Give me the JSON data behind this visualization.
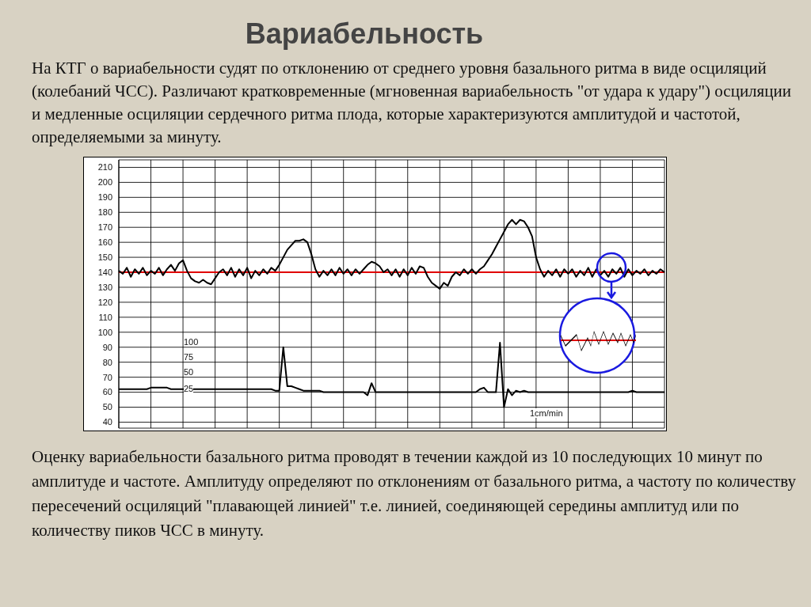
{
  "chart_data": {
    "type": "line",
    "title": "Вариабельность",
    "subtitle": "На КТГ о вариабельности судят по отклонению от среднего уровня базального ритма в виде осциляций (колебаний ЧСС). Различают кратковременные (мгновенная вариабельность \"от удара к удару\") осциляции и медленные осциляции сердечного ритма плода, которые характеризуются амплитудой и частотой, определяемыми за минуту.",
    "categories": [
      null,
      null,
      null,
      null,
      null,
      null,
      null,
      null,
      null,
      null,
      null,
      null,
      null,
      null,
      null,
      null,
      null,
      null,
      null,
      null,
      null,
      null,
      null,
      null,
      null,
      null,
      null,
      null,
      null,
      null,
      null,
      null,
      null,
      null,
      null,
      null,
      null,
      null,
      null,
      null,
      null,
      null,
      null,
      null,
      null,
      null,
      null,
      null,
      null,
      null,
      null,
      null,
      null,
      null,
      null,
      null,
      null,
      null,
      null,
      null,
      null,
      null,
      null,
      null,
      null,
      null,
      null,
      null,
      null,
      null,
      null,
      null,
      null,
      null,
      null,
      null,
      null,
      null,
      null,
      null,
      null,
      null,
      null,
      null,
      null,
      null,
      null,
      null,
      null,
      null,
      null,
      null,
      null,
      null,
      null,
      null,
      null,
      null,
      null,
      null,
      null,
      null,
      null,
      null,
      null,
      null,
      null,
      null,
      null,
      null,
      null,
      null,
      null,
      null,
      null,
      null,
      null,
      null,
      null,
      null,
      null,
      null,
      null,
      null,
      null,
      null,
      null,
      null,
      null,
      null,
      null,
      null,
      null,
      null,
      null,
      null,
      null
    ],
    "series": [
      {
        "color": "#000000",
        "values": [
          141,
          139,
          143,
          137,
          142,
          139,
          143,
          138,
          141,
          139,
          143,
          138,
          142,
          145,
          141,
          146,
          148,
          141,
          136,
          134,
          133,
          135,
          133,
          132,
          136,
          140,
          142,
          138,
          143,
          137,
          142,
          138,
          143,
          136,
          141,
          138,
          142,
          139,
          143,
          141,
          145,
          150,
          155,
          158,
          161,
          161,
          162,
          160,
          152,
          142,
          137,
          141,
          138,
          142,
          138,
          143,
          139,
          142,
          138,
          142,
          139,
          142,
          145,
          147,
          146,
          144,
          140,
          142,
          138,
          142,
          137,
          142,
          138,
          143,
          139,
          144,
          143,
          137,
          133,
          131,
          129,
          133,
          131,
          137,
          140,
          138,
          142,
          139,
          142,
          139,
          142,
          144,
          148,
          152,
          157,
          162,
          167,
          172,
          175,
          172,
          175,
          174,
          170,
          164,
          150,
          142,
          137,
          141,
          138,
          142,
          137,
          142,
          139,
          142,
          137,
          141,
          138,
          143,
          137,
          142,
          138,
          141,
          137,
          142,
          139,
          143,
          137,
          142,
          138,
          141,
          139,
          142,
          138,
          141,
          139,
          142,
          140
        ]
      },
      {
        "color": "#000000",
        "values": [
          62,
          62,
          62,
          62,
          62,
          62,
          62,
          62,
          63,
          63,
          63,
          63,
          63,
          62,
          62,
          62,
          62,
          62,
          62,
          62,
          62,
          62,
          62,
          62,
          62,
          62,
          62,
          62,
          62,
          62,
          62,
          62,
          62,
          62,
          62,
          62,
          62,
          62,
          62,
          61,
          61,
          90,
          64,
          64,
          63,
          62,
          61,
          61,
          61,
          61,
          61,
          60,
          60,
          60,
          60,
          60,
          60,
          60,
          60,
          60,
          60,
          60,
          58,
          66,
          60,
          60,
          60,
          60,
          60,
          60,
          60,
          60,
          60,
          60,
          60,
          60,
          60,
          60,
          60,
          60,
          60,
          60,
          60,
          60,
          60,
          60,
          60,
          60,
          60,
          60,
          62,
          63,
          60,
          60,
          60,
          93,
          50,
          62,
          58,
          61,
          60,
          61,
          60,
          60,
          60,
          60,
          60,
          60,
          60,
          60,
          60,
          60,
          60,
          60,
          60,
          60,
          60,
          60,
          60,
          60,
          60,
          60,
          60,
          60,
          60,
          60,
          60,
          60,
          61,
          60,
          60,
          60,
          60,
          60,
          60,
          60,
          60
        ]
      }
    ],
    "ylim": [
      36,
      215
    ],
    "yticks": [
      40,
      50,
      60,
      70,
      80,
      90,
      100,
      110,
      120,
      130,
      140,
      150,
      160,
      170,
      180,
      190,
      200,
      210
    ],
    "grid": true,
    "marker": "none",
    "line_style": "solid",
    "ref_lines": [
      {
        "axis": "y",
        "value": 140,
        "color": "#e00000"
      }
    ],
    "annotations": [
      {
        "text": "100"
      },
      {
        "text": "75"
      },
      {
        "text": "50"
      },
      {
        "text": "25"
      },
      {
        "text": "1cm/min"
      },
      {
        "text": "Оценку вариабельности базального ритма проводят в течении каждой из 10 последующих 10 минут по амплитуде и частоте. Амплитуду определяют по отклонениям от базального ритма, а частоту по количеству пересечений осциляций \"плавающей линией\" т.е. линией, соединяющей середины амплитуд или по количеству пиков ЧСС в минуту."
      }
    ]
  }
}
